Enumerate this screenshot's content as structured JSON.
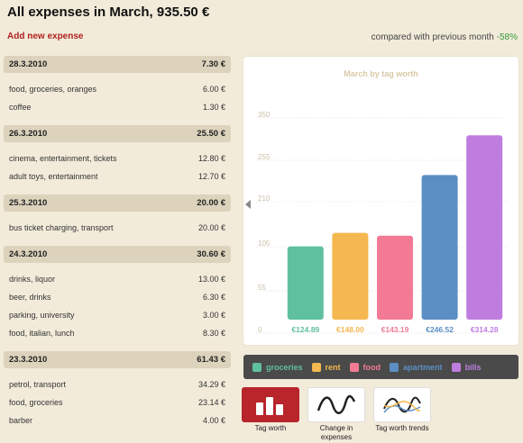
{
  "header": {
    "title": "All expenses in March, 935.50 €",
    "add_link": "Add new expense",
    "compare_text": "compared with previous month",
    "compare_pct": "-58%"
  },
  "days": [
    {
      "date": "28.3.2010",
      "total": "7.30 €",
      "items": [
        {
          "label": "food, groceries, oranges",
          "amount": "6.00 €"
        },
        {
          "label": "coffee",
          "amount": "1.30 €"
        }
      ]
    },
    {
      "date": "26.3.2010",
      "total": "25.50 €",
      "items": [
        {
          "label": "cinema, entertainment, tickets",
          "amount": "12.80 €"
        },
        {
          "label": "adult toys, entertainment",
          "amount": "12.70 €"
        }
      ]
    },
    {
      "date": "25.3.2010",
      "total": "20.00 €",
      "items": [
        {
          "label": "bus ticket charging, transport",
          "amount": "20.00 €"
        }
      ]
    },
    {
      "date": "24.3.2010",
      "total": "30.60 €",
      "items": [
        {
          "label": "drinks, liquor",
          "amount": "13.00 €"
        },
        {
          "label": "beer, drinks",
          "amount": "6.30 €"
        },
        {
          "label": "parking, university",
          "amount": "3.00 €"
        },
        {
          "label": "food, italian, lunch",
          "amount": "8.30 €"
        }
      ]
    },
    {
      "date": "23.3.2010",
      "total": "61.43 €",
      "items": [
        {
          "label": "petrol, transport",
          "amount": "34.29 €"
        },
        {
          "label": "food, groceries",
          "amount": "23.14 €"
        },
        {
          "label": "barber",
          "amount": "4.00 €"
        }
      ]
    }
  ],
  "chart_data": {
    "type": "bar",
    "title": "March by tag worth",
    "categories": [
      "groceries",
      "rent",
      "food",
      "apartment",
      "bills"
    ],
    "values": [
      124.89,
      148.0,
      143.19,
      246.52,
      314.28
    ],
    "value_labels": [
      "€124.89",
      "€148.00",
      "€143.19",
      "€246.52",
      "€314.28"
    ],
    "colors": [
      "#5fc0a0",
      "#f5b74f",
      "#f27a95",
      "#5b8fc4",
      "#c07de0"
    ],
    "yticks": [
      "350",
      "255",
      "210",
      "105",
      "55",
      "0"
    ],
    "ylim": [
      0,
      350
    ],
    "grid": true,
    "legend_position": "bottom"
  },
  "views": [
    {
      "label": "Tag worth",
      "active": true,
      "icon": "bar-chart-icon"
    },
    {
      "label": "Change in expenses",
      "active": false,
      "icon": "wave-line-icon"
    },
    {
      "label": "Tag worth trends",
      "active": false,
      "icon": "multi-wave-icon"
    }
  ]
}
